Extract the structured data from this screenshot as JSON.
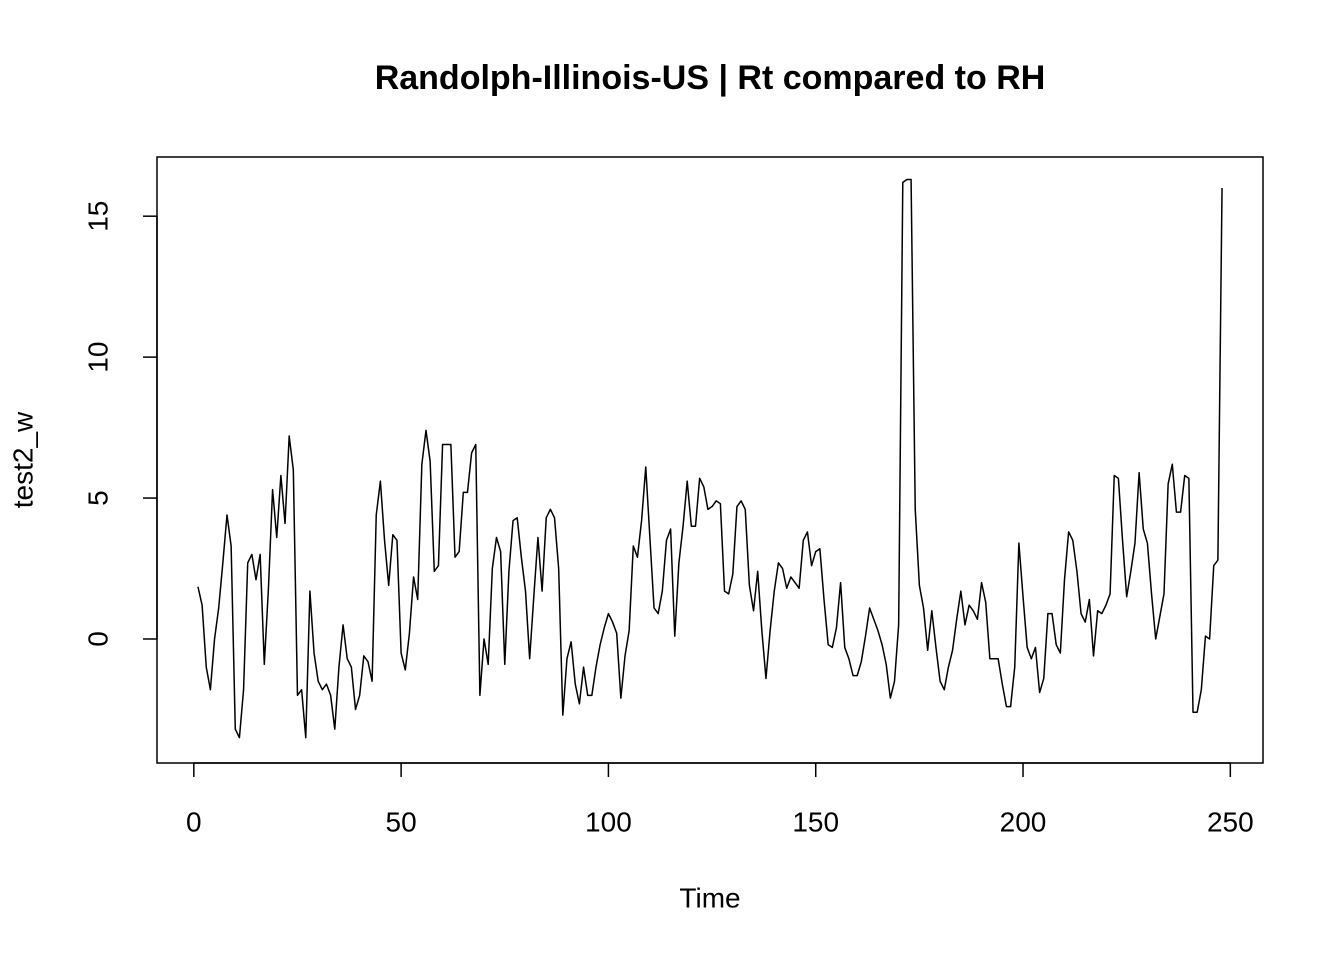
{
  "chart_data": {
    "type": "line",
    "title": "Randolph-Illinois-US | Rt compared to RH",
    "xlabel": "Time",
    "ylabel": "test2_w",
    "color": "#000000",
    "xlim": [
      -8.88,
      257.88
    ],
    "ylim": [
      -4.4,
      17.1
    ],
    "xticks": [
      0,
      50,
      100,
      150,
      200,
      250
    ],
    "yticks": [
      0,
      5,
      10,
      15
    ],
    "x": [
      1,
      2,
      3,
      4,
      5,
      6,
      7,
      8,
      9,
      10,
      11,
      12,
      13,
      14,
      15,
      16,
      17,
      18,
      19,
      20,
      21,
      22,
      23,
      24,
      25,
      26,
      27,
      28,
      29,
      30,
      31,
      32,
      33,
      34,
      35,
      36,
      37,
      38,
      39,
      40,
      41,
      42,
      43,
      44,
      45,
      46,
      47,
      48,
      49,
      50,
      51,
      52,
      53,
      54,
      55,
      56,
      57,
      58,
      59,
      60,
      61,
      62,
      63,
      64,
      65,
      66,
      67,
      68,
      69,
      70,
      71,
      72,
      73,
      74,
      75,
      76,
      77,
      78,
      79,
      80,
      81,
      82,
      83,
      84,
      85,
      86,
      87,
      88,
      89,
      90,
      91,
      92,
      93,
      94,
      95,
      96,
      97,
      98,
      99,
      100,
      101,
      102,
      103,
      104,
      105,
      106,
      107,
      108,
      109,
      110,
      111,
      112,
      113,
      114,
      115,
      116,
      117,
      118,
      119,
      120,
      121,
      122,
      123,
      124,
      125,
      126,
      127,
      128,
      129,
      130,
      131,
      132,
      133,
      134,
      135,
      136,
      137,
      138,
      139,
      140,
      141,
      142,
      143,
      144,
      145,
      146,
      147,
      148,
      149,
      150,
      151,
      152,
      153,
      154,
      155,
      156,
      157,
      158,
      159,
      160,
      161,
      162,
      163,
      164,
      165,
      166,
      167,
      168,
      169,
      170,
      171,
      172,
      173,
      174,
      175,
      176,
      177,
      178,
      179,
      180,
      181,
      182,
      183,
      184,
      185,
      186,
      187,
      188,
      189,
      190,
      191,
      192,
      193,
      194,
      195,
      196,
      197,
      198,
      199,
      200,
      201,
      202,
      203,
      204,
      205,
      206,
      207,
      208,
      209,
      210,
      211,
      212,
      213,
      214,
      215,
      216,
      217,
      218,
      219,
      220,
      221,
      222,
      223,
      224,
      225,
      226,
      227,
      228,
      229,
      230,
      231,
      232,
      233,
      234,
      235,
      236,
      237,
      238,
      239,
      240,
      241,
      242,
      243,
      244,
      245,
      246,
      247,
      248
    ],
    "values": [
      1.85,
      1.2,
      -1.0,
      -1.8,
      0,
      1.1,
      2.7,
      4.4,
      3.3,
      -3.2,
      -3.5,
      -1.8,
      2.7,
      3.0,
      2.1,
      3.0,
      -0.9,
      1.8,
      5.3,
      3.6,
      5.8,
      4.1,
      7.2,
      6.0,
      -2.0,
      -1.8,
      -3.5,
      1.7,
      -0.5,
      -1.5,
      -1.8,
      -1.6,
      -2.0,
      -3.2,
      -1.0,
      0.5,
      -0.7,
      -1.0,
      -2.5,
      -2.0,
      -0.6,
      -0.8,
      -1.5,
      4.4,
      5.6,
      3.5,
      1.9,
      3.7,
      3.5,
      -0.5,
      -1.1,
      0.2,
      2.2,
      1.4,
      6.2,
      7.4,
      6.3,
      2.4,
      2.6,
      6.9,
      6.9,
      6.9,
      2.9,
      3.1,
      5.2,
      5.2,
      6.6,
      6.9,
      -2.0,
      0.0,
      -0.9,
      2.5,
      3.6,
      3.1,
      -0.9,
      2.4,
      4.2,
      4.3,
      2.9,
      1.7,
      -0.7,
      1.5,
      3.6,
      1.7,
      4.3,
      4.6,
      4.3,
      2.5,
      -2.7,
      -0.7,
      -0.1,
      -1.6,
      -2.3,
      -1.0,
      -2.0,
      -2.0,
      -1.0,
      -0.2,
      0.4,
      0.9,
      0.6,
      0.2,
      -2.1,
      -0.6,
      0.3,
      3.3,
      2.9,
      4.2,
      6.1,
      3.6,
      1.1,
      0.9,
      1.7,
      3.5,
      3.9,
      0.1,
      2.7,
      4.0,
      5.6,
      4.0,
      4.0,
      5.7,
      5.4,
      4.6,
      4.7,
      4.9,
      4.8,
      1.7,
      1.6,
      2.3,
      4.7,
      4.9,
      4.6,
      1.9,
      1.0,
      2.4,
      0.3,
      -1.4,
      0.3,
      1.7,
      2.7,
      2.5,
      1.8,
      2.2,
      2.0,
      1.8,
      3.5,
      3.8,
      2.6,
      3.1,
      3.2,
      1.4,
      -0.2,
      -0.3,
      0.4,
      2.0,
      -0.3,
      -0.7,
      -1.3,
      -1.3,
      -0.8,
      0.1,
      1.1,
      0.7,
      0.3,
      -0.2,
      -0.9,
      -2.1,
      -1.5,
      0.5,
      16.2,
      16.3,
      16.3,
      4.6,
      1.9,
      1.1,
      -0.4,
      1.0,
      -0.3,
      -1.5,
      -1.8,
      -1.0,
      -0.4,
      0.7,
      1.7,
      0.5,
      1.2,
      1.0,
      0.7,
      2.0,
      1.3,
      -0.7,
      -0.7,
      -0.7,
      -1.6,
      -2.4,
      -2.4,
      -1.0,
      3.4,
      1.5,
      -0.3,
      -0.7,
      -0.3,
      -1.9,
      -1.4,
      0.9,
      0.9,
      -0.2,
      -0.5,
      2.1,
      3.8,
      3.5,
      2.4,
      0.9,
      0.6,
      1.4,
      -0.6,
      1.0,
      0.9,
      1.2,
      1.6,
      5.8,
      5.7,
      3.5,
      1.5,
      2.4,
      3.4,
      5.9,
      3.9,
      3.4,
      1.6,
      0.0,
      0.8,
      1.6,
      5.5,
      6.2,
      4.5,
      4.5,
      5.8,
      5.7,
      -2.6,
      -2.6,
      -1.8,
      0.1,
      0.0,
      2.6,
      2.8,
      16.0
    ]
  }
}
